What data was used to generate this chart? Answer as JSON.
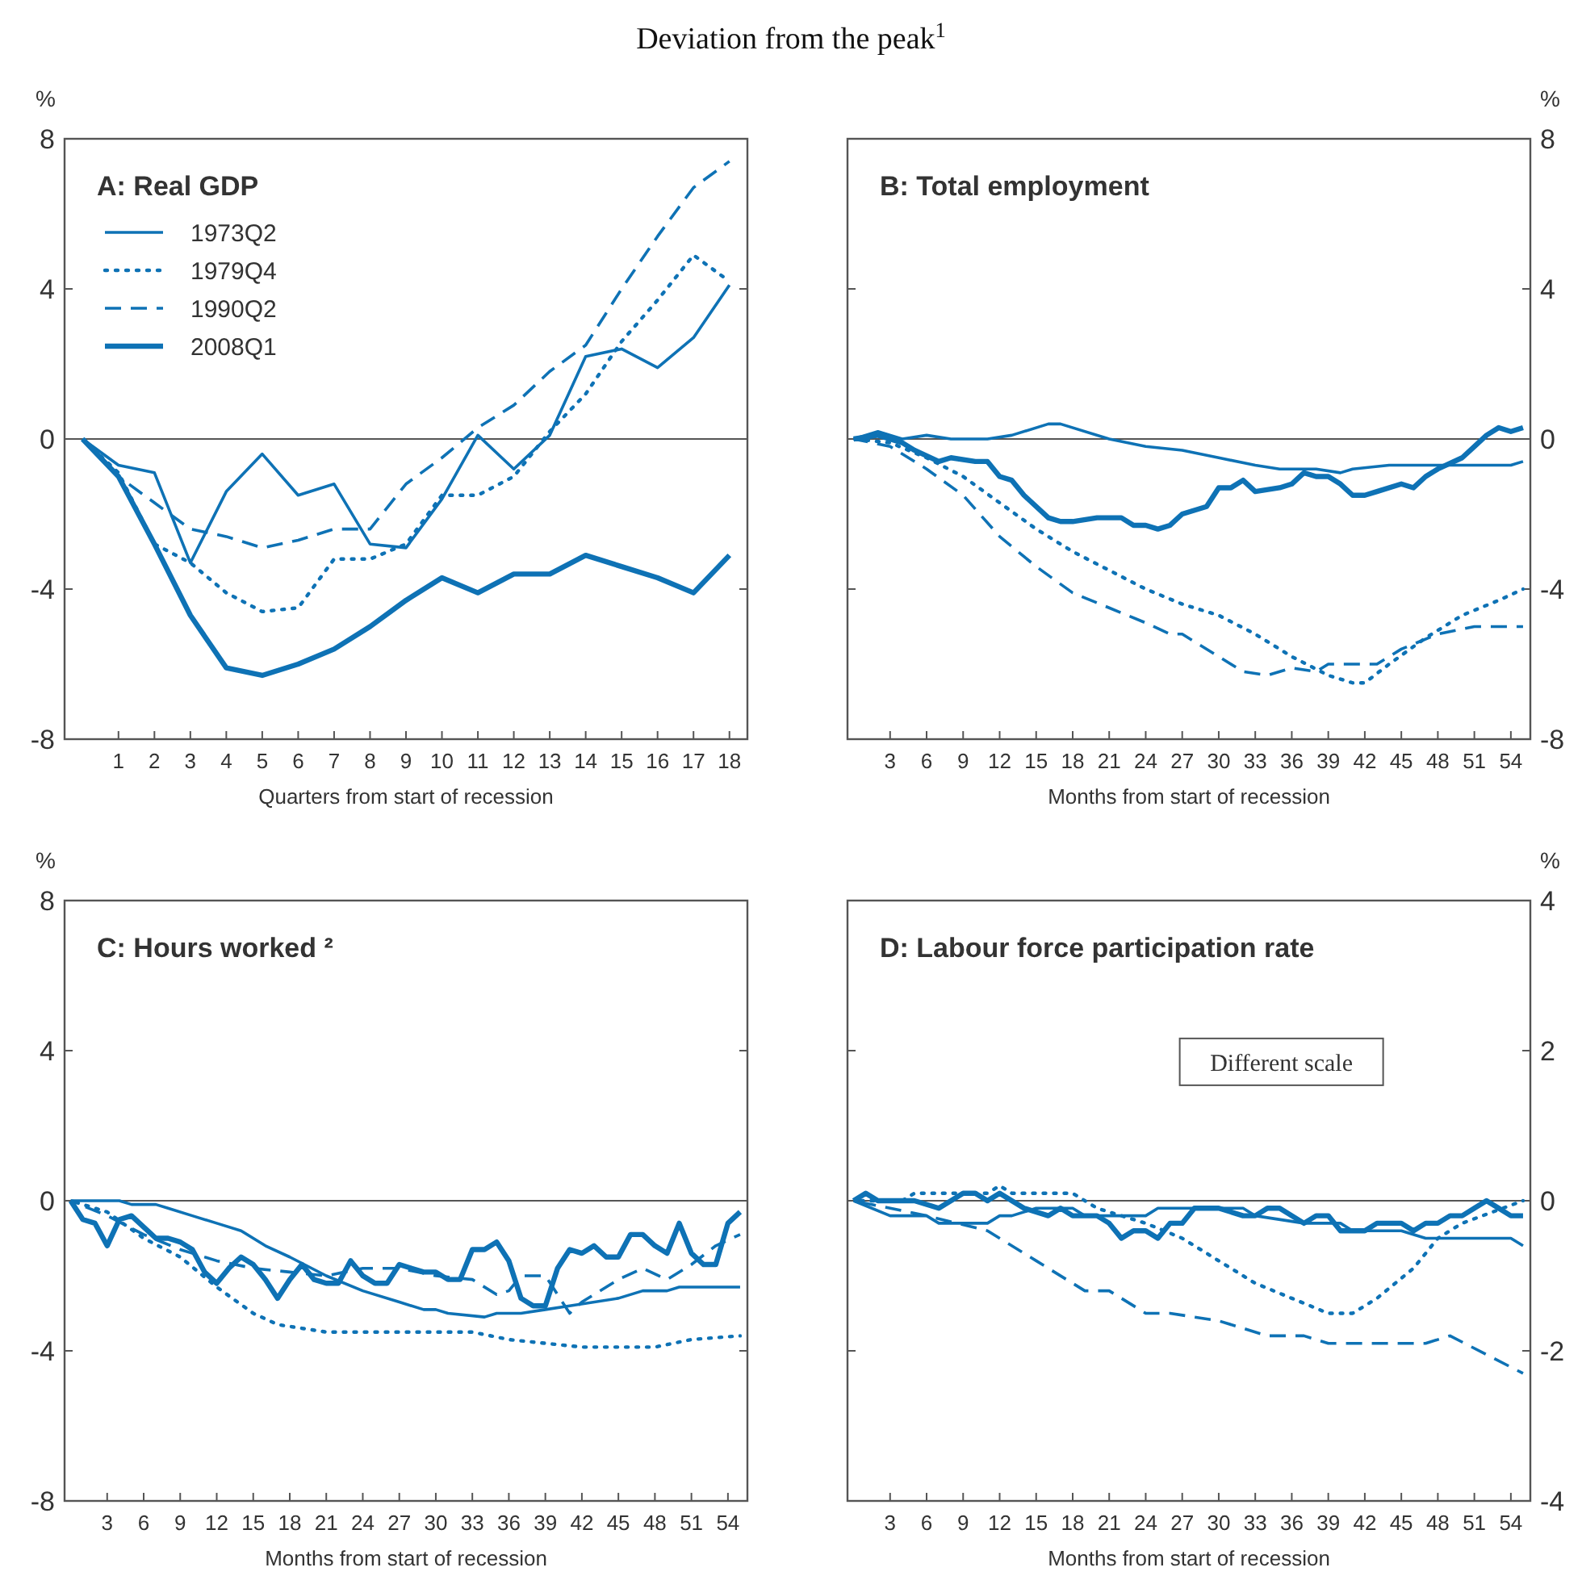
{
  "chart_data": [
    {
      "type": "line",
      "subtitle": "Deviation from the peak$^{1}$",
      "title": "A: Real GDP",
      "xlabel": "Quarters from start of recession",
      "ylabel": "%",
      "xlim": [
        -0.5,
        18.5
      ],
      "xticks": [
        1,
        2,
        3,
        4,
        5,
        6,
        7,
        8,
        9,
        10,
        11,
        12,
        13,
        14,
        15,
        16,
        17,
        18
      ],
      "ylim": [
        -8,
        8
      ],
      "yticks": [
        -8,
        -4,
        0,
        4,
        8
      ],
      "grid": false,
      "legend": "top left",
      "ref_lines": [
        {
          "axis": "y",
          "value": 0
        }
      ],
      "x": [
        0,
        1,
        2,
        3,
        4,
        5,
        6,
        7,
        8,
        9,
        10,
        11,
        12,
        13,
        14,
        15,
        16,
        17,
        18
      ],
      "series": [
        {
          "name": "1973Q2",
          "color": "#0e72b5",
          "line_style": "solid",
          "values": [
            0,
            -0.7,
            -0.9,
            -3.3,
            -1.4,
            -0.4,
            -1.5,
            -1.2,
            -2.8,
            -2.9,
            -1.6,
            0.1,
            -0.8,
            0.1,
            2.2,
            2.4,
            1.9,
            2.7,
            4.1
          ]
        },
        {
          "name": "1979Q4",
          "color": "#0e72b5",
          "line_style": "dotted",
          "values": [
            0,
            -0.9,
            -2.8,
            -3.3,
            -4.1,
            -4.6,
            -4.5,
            -3.2,
            -3.2,
            -2.8,
            -1.5,
            -1.5,
            -1.0,
            0.2,
            1.2,
            2.6,
            3.7,
            4.9,
            4.2
          ]
        },
        {
          "name": "1990Q2",
          "color": "#0e72b5",
          "line_style": "dashed",
          "values": [
            0,
            -1.0,
            -1.7,
            -2.4,
            -2.6,
            -2.9,
            -2.7,
            -2.4,
            -2.4,
            -1.2,
            -0.5,
            0.3,
            0.9,
            1.8,
            2.5,
            4.0,
            5.4,
            6.7,
            7.4
          ]
        },
        {
          "name": "2008Q1",
          "color": "#0e72b5",
          "line_style": "solid",
          "values": [
            0,
            -1.0,
            -2.8,
            -4.7,
            -6.1,
            -6.3,
            -6.0,
            -5.6,
            -5.0,
            -4.3,
            -3.7,
            -4.1,
            -3.6,
            -3.6,
            -3.1,
            -3.4,
            -3.7,
            -4.1,
            -3.1
          ]
        }
      ]
    },
    {
      "type": "line",
      "title": "B: Total employment",
      "xlabel": "Months from start of recession",
      "ylabel": "%",
      "xlim": [
        -0.5,
        55.6
      ],
      "xticks": [
        3,
        6,
        9,
        12,
        15,
        18,
        21,
        24,
        27,
        30,
        33,
        36,
        39,
        42,
        45,
        48,
        51,
        54
      ],
      "ylim": [
        -8,
        8
      ],
      "yticks": [
        -8,
        -4,
        0,
        4,
        8
      ],
      "grid": false,
      "ref_lines": [
        {
          "axis": "y",
          "value": 0
        }
      ],
      "series": [
        {
          "color": "#0e72b5",
          "line_style": "solid",
          "x": [
            0,
            2,
            4,
            6,
            8,
            11,
            13,
            16,
            17,
            21,
            24,
            27,
            30,
            33,
            35,
            38,
            40,
            41,
            44,
            54,
            55
          ],
          "values": [
            0,
            0.2,
            0,
            0.1,
            0,
            0,
            0.1,
            0.4,
            0.4,
            0,
            -0.2,
            -0.3,
            -0.5,
            -0.7,
            -0.8,
            -0.8,
            -0.9,
            -0.8,
            -0.7,
            -0.7,
            -0.6
          ]
        },
        {
          "color": "#0e72b5",
          "line_style": "dotted",
          "x": [
            0,
            3,
            6,
            9,
            12,
            15,
            18,
            21,
            24,
            27,
            30,
            33,
            36,
            39,
            41,
            42,
            44,
            47,
            50,
            53,
            55
          ],
          "values": [
            0,
            -0.1,
            -0.5,
            -1.0,
            -1.7,
            -2.4,
            -3.0,
            -3.5,
            -4.0,
            -4.4,
            -4.7,
            -5.2,
            -5.8,
            -6.3,
            -6.5,
            -6.5,
            -6.0,
            -5.3,
            -4.7,
            -4.3,
            -4.0
          ]
        },
        {
          "color": "#0e72b5",
          "line_style": "dashed",
          "x": [
            0,
            3,
            6,
            9,
            12,
            15,
            18,
            21,
            24,
            26,
            27,
            30,
            32,
            34,
            36,
            38,
            39,
            43,
            45,
            48,
            51,
            55
          ],
          "values": [
            0,
            -0.2,
            -0.8,
            -1.5,
            -2.6,
            -3.4,
            -4.1,
            -4.5,
            -4.9,
            -5.2,
            -5.2,
            -5.8,
            -6.2,
            -6.3,
            -6.1,
            -6.2,
            -6.0,
            -6.0,
            -5.6,
            -5.2,
            -5.0,
            -5.0
          ]
        },
        {
          "color": "#0e72b5",
          "line_style": "solid",
          "x": [
            0,
            2,
            4,
            5,
            7,
            8,
            10,
            11,
            12,
            13,
            14,
            16,
            17,
            18,
            20,
            22,
            23,
            24,
            25,
            26,
            27,
            29,
            30,
            31,
            32,
            33,
            35,
            36,
            37,
            38,
            39,
            40,
            41,
            42,
            43,
            45,
            46,
            47,
            48,
            50,
            51,
            52,
            53,
            54,
            55
          ],
          "values": [
            0,
            0.1,
            -0.1,
            -0.3,
            -0.6,
            -0.5,
            -0.6,
            -0.6,
            -1.0,
            -1.1,
            -1.5,
            -2.1,
            -2.2,
            -2.2,
            -2.1,
            -2.1,
            -2.3,
            -2.3,
            -2.4,
            -2.3,
            -2.0,
            -1.8,
            -1.3,
            -1.3,
            -1.1,
            -1.4,
            -1.3,
            -1.2,
            -0.9,
            -1.0,
            -1.0,
            -1.2,
            -1.5,
            -1.5,
            -1.4,
            -1.2,
            -1.3,
            -1.0,
            -0.8,
            -0.5,
            -0.2,
            0.1,
            0.3,
            0.2,
            0.3
          ]
        }
      ]
    },
    {
      "type": "line",
      "title": "C: Hours worked ²",
      "xlabel": "Months from start of recession",
      "ylabel": "%",
      "xlim": [
        -0.5,
        55.6
      ],
      "xticks": [
        3,
        6,
        9,
        12,
        15,
        18,
        21,
        24,
        27,
        30,
        33,
        36,
        39,
        42,
        45,
        48,
        51,
        54
      ],
      "ylim": [
        -8,
        8
      ],
      "yticks": [
        -8,
        -4,
        0,
        4,
        8
      ],
      "grid": false,
      "ref_lines": [
        {
          "axis": "y",
          "value": 0
        }
      ],
      "series": [
        {
          "color": "#0e72b5",
          "line_style": "solid",
          "x": [
            0,
            4,
            5,
            7,
            8,
            10,
            12,
            14,
            16,
            18,
            21,
            24,
            27,
            29,
            30,
            31,
            34,
            35,
            37,
            39,
            41,
            45,
            47,
            49,
            50,
            55
          ],
          "values": [
            0,
            0,
            -0.1,
            -0.1,
            -0.2,
            -0.4,
            -0.6,
            -0.8,
            -1.2,
            -1.5,
            -2.0,
            -2.4,
            -2.7,
            -2.9,
            -2.9,
            -3.0,
            -3.1,
            -3.0,
            -3.0,
            -2.9,
            -2.8,
            -2.6,
            -2.4,
            -2.4,
            -2.3,
            -2.3
          ]
        },
        {
          "color": "#0e72b5",
          "line_style": "dotted",
          "x": [
            0,
            3,
            6,
            9,
            12,
            15,
            17,
            21,
            33,
            36,
            39,
            42,
            48,
            51,
            55
          ],
          "values": [
            0,
            -0.3,
            -1.0,
            -1.5,
            -2.3,
            -3.0,
            -3.3,
            -3.5,
            -3.5,
            -3.7,
            -3.8,
            -3.9,
            -3.9,
            -3.7,
            -3.6
          ]
        },
        {
          "color": "#0e72b5",
          "line_style": "dashed",
          "x": [
            0,
            3,
            6,
            9,
            12,
            15,
            18,
            21,
            24,
            27,
            30,
            33,
            35,
            36,
            37,
            39,
            41,
            42,
            45,
            47,
            49,
            51,
            53,
            55
          ],
          "values": [
            0,
            -0.4,
            -0.9,
            -1.3,
            -1.6,
            -1.8,
            -1.9,
            -2.0,
            -1.8,
            -1.8,
            -2.0,
            -2.1,
            -2.5,
            -2.4,
            -2.0,
            -2.0,
            -3.0,
            -2.7,
            -2.1,
            -1.8,
            -2.1,
            -1.7,
            -1.2,
            -0.9
          ]
        },
        {
          "color": "#0e72b5",
          "line_style": "solid",
          "x": [
            0,
            1,
            2,
            3,
            4,
            5,
            6,
            7,
            8,
            9,
            10,
            11,
            12,
            13,
            14,
            15,
            16,
            17,
            18,
            19,
            20,
            21,
            22,
            23,
            24,
            25,
            26,
            27,
            28,
            29,
            30,
            31,
            32,
            33,
            34,
            35,
            36,
            37,
            38,
            39,
            40,
            41,
            42,
            43,
            44,
            45,
            46,
            47,
            48,
            49,
            50,
            51,
            52,
            53,
            54,
            55
          ],
          "values": [
            0,
            -0.5,
            -0.6,
            -1.2,
            -0.5,
            -0.4,
            -0.7,
            -1.0,
            -1.0,
            -1.1,
            -1.3,
            -1.9,
            -2.2,
            -1.8,
            -1.5,
            -1.7,
            -2.1,
            -2.6,
            -2.1,
            -1.7,
            -2.1,
            -2.2,
            -2.2,
            -1.6,
            -2.0,
            -2.2,
            -2.2,
            -1.7,
            -1.8,
            -1.9,
            -1.9,
            -2.1,
            -2.1,
            -1.3,
            -1.3,
            -1.1,
            -1.6,
            -2.6,
            -2.8,
            -2.8,
            -1.8,
            -1.3,
            -1.4,
            -1.2,
            -1.5,
            -1.5,
            -0.9,
            -0.9,
            -1.2,
            -1.4,
            -0.6,
            -1.4,
            -1.7,
            -1.7,
            -0.6,
            -0.3
          ]
        }
      ]
    },
    {
      "type": "line",
      "title": "D: Labour force participation rate",
      "xlabel": "Months from start of recession",
      "ylabel": "%",
      "xlim": [
        -0.5,
        55.6
      ],
      "xticks": [
        3,
        6,
        9,
        12,
        15,
        18,
        21,
        24,
        27,
        30,
        33,
        36,
        39,
        42,
        45,
        48,
        51,
        54
      ],
      "ylim": [
        -4,
        4
      ],
      "yticks": [
        -4,
        -2,
        0,
        2,
        4
      ],
      "grid": false,
      "ref_lines": [
        {
          "axis": "y",
          "value": 0
        }
      ],
      "annotations": [
        "Different scale"
      ],
      "series": [
        {
          "color": "#0e72b5",
          "line_style": "solid",
          "x": [
            0,
            3,
            6,
            7,
            11,
            12,
            13,
            15,
            18,
            19,
            24,
            25,
            32,
            33,
            37,
            40,
            41,
            45,
            47,
            54,
            55
          ],
          "values": [
            0,
            -0.2,
            -0.2,
            -0.3,
            -0.3,
            -0.2,
            -0.2,
            -0.1,
            -0.1,
            -0.2,
            -0.2,
            -0.1,
            -0.1,
            -0.2,
            -0.3,
            -0.3,
            -0.4,
            -0.4,
            -0.5,
            -0.5,
            -0.6
          ]
        },
        {
          "color": "#0e72b5",
          "line_style": "dotted",
          "x": [
            0,
            4,
            5,
            11,
            12,
            13,
            18,
            20,
            24,
            27,
            30,
            33,
            36,
            39,
            41,
            43,
            46,
            48,
            50,
            55
          ],
          "values": [
            0,
            0,
            0.1,
            0.1,
            0.2,
            0.1,
            0.1,
            -0.1,
            -0.3,
            -0.5,
            -0.8,
            -1.1,
            -1.3,
            -1.5,
            -1.5,
            -1.3,
            -0.9,
            -0.5,
            -0.3,
            0
          ]
        },
        {
          "color": "#0e72b5",
          "line_style": "dashed",
          "x": [
            0,
            6,
            11,
            15,
            19,
            21,
            24,
            26,
            30,
            34,
            37,
            39,
            47,
            49,
            55
          ],
          "values": [
            0,
            -0.2,
            -0.4,
            -0.8,
            -1.2,
            -1.2,
            -1.5,
            -1.5,
            -1.6,
            -1.8,
            -1.8,
            -1.9,
            -1.9,
            -1.8,
            -2.3
          ]
        },
        {
          "color": "#0e72b5",
          "line_style": "solid",
          "x": [
            0,
            1,
            2,
            5,
            7,
            8,
            9,
            10,
            11,
            12,
            14,
            16,
            17,
            18,
            20,
            21,
            22,
            23,
            24,
            25,
            26,
            27,
            28,
            30,
            32,
            33,
            34,
            35,
            37,
            38,
            39,
            40,
            42,
            43,
            45,
            46,
            47,
            48,
            49,
            50,
            51,
            52,
            53,
            54,
            55
          ],
          "values": [
            0,
            0.1,
            0,
            0,
            -0.1,
            0,
            0.1,
            0.1,
            0,
            0.1,
            -0.1,
            -0.2,
            -0.1,
            -0.2,
            -0.2,
            -0.3,
            -0.5,
            -0.4,
            -0.4,
            -0.5,
            -0.3,
            -0.3,
            -0.1,
            -0.1,
            -0.2,
            -0.2,
            -0.1,
            -0.1,
            -0.3,
            -0.2,
            -0.2,
            -0.4,
            -0.4,
            -0.3,
            -0.3,
            -0.4,
            -0.3,
            -0.3,
            -0.2,
            -0.2,
            -0.1,
            0,
            -0.1,
            -0.2,
            -0.2
          ]
        }
      ]
    }
  ]
}
